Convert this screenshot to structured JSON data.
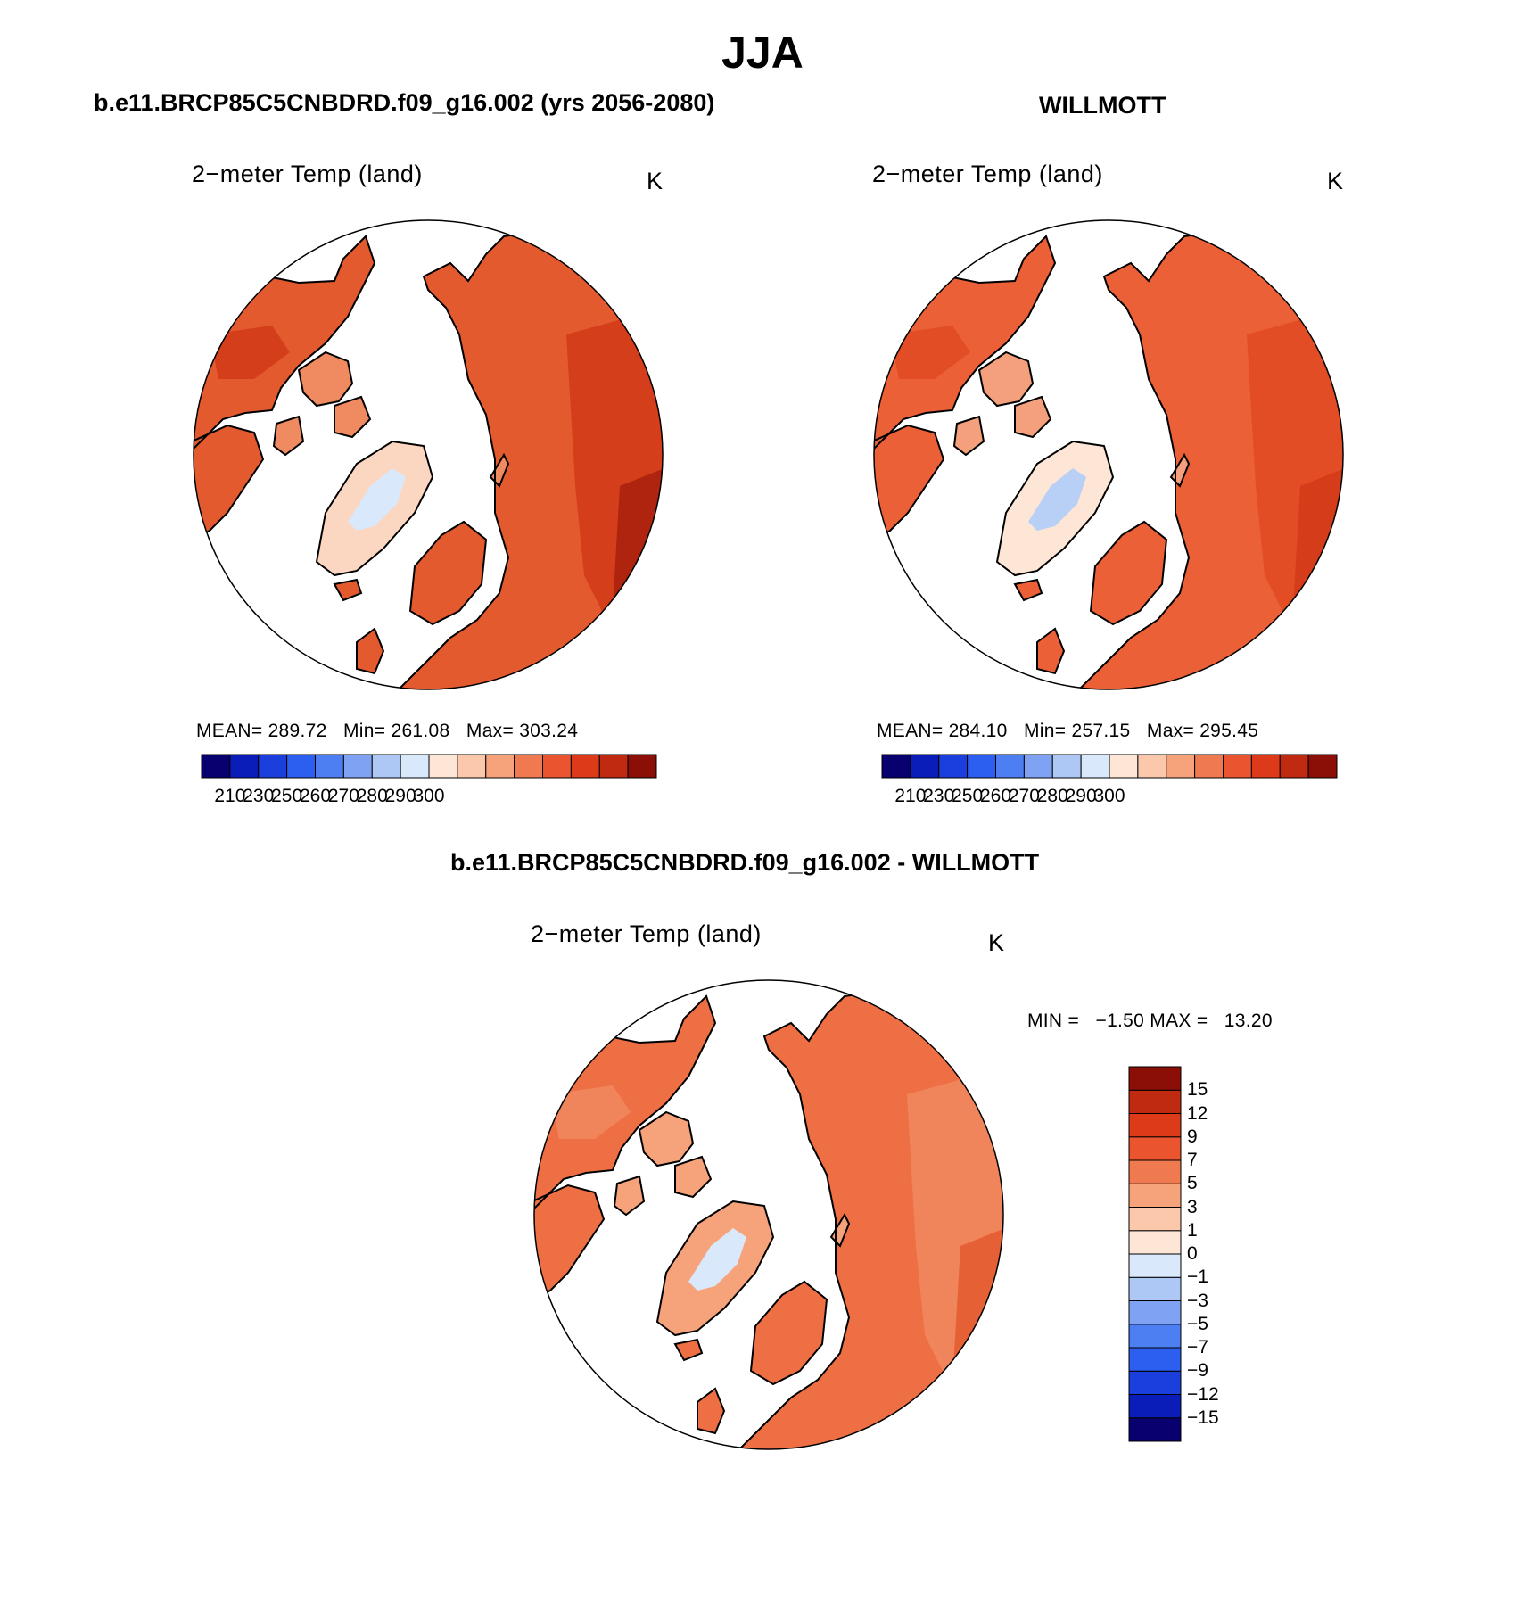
{
  "title": "JJA",
  "panels": [
    {
      "heading": "b.e11.BRCP85C5CNBDRD.f09_g16.002 (yrs 2056-2080)",
      "label": "2−meter Temp (land)",
      "units": "K",
      "stats": {
        "mean_label": "MEAN=",
        "mean": "289.72",
        "min_label": "Min=",
        "min": "261.08",
        "max_label": "Max=",
        "max": "303.24"
      }
    },
    {
      "heading": "WILLMOTT",
      "label": "2−meter Temp (land)",
      "units": "K",
      "stats": {
        "mean_label": "MEAN=",
        "mean": "284.10",
        "min_label": "Min=",
        "min": "257.15",
        "max_label": "Max=",
        "max": "295.45"
      }
    },
    {
      "heading": "b.e11.BRCP85C5CNBDRD.f09_g16.002 - WILLMOTT",
      "label": "2−meter Temp (land)",
      "units": "K",
      "stats": {
        "min_label": "MIN =",
        "min": "−1.50",
        "max_label": "MAX =",
        "max": "13.20"
      }
    }
  ],
  "abs_colorbar": {
    "colors": [
      "#08006e",
      "#0a1db8",
      "#1a3fdc",
      "#2c5ff0",
      "#4d7ef2",
      "#7fa3f2",
      "#aec8f6",
      "#d9e8fa",
      "#fde6d6",
      "#fbc8ac",
      "#f6a37c",
      "#f07a50",
      "#ea5530",
      "#dd3a19",
      "#c02a10",
      "#8b0f06"
    ],
    "ticks": [
      "210",
      "230",
      "250",
      "260",
      "270",
      "280",
      "290",
      "300"
    ]
  },
  "diff_colorbar": {
    "colors": [
      "#08006e",
      "#0a1db8",
      "#1a3fdc",
      "#2c5ff0",
      "#4d7ef2",
      "#7fa3f2",
      "#aec8f6",
      "#d9e8fa",
      "#fde6d6",
      "#fbc8ac",
      "#f6a37c",
      "#f07a50",
      "#ea5530",
      "#dd3a19",
      "#c02a10",
      "#8b0f06"
    ],
    "ticks": [
      "−15",
      "−12",
      "−9",
      "−7",
      "−5",
      "−3",
      "−1",
      "0",
      "1",
      "3",
      "5",
      "7",
      "9",
      "12",
      "15"
    ]
  },
  "map_colors": {
    "panel1": {
      "primary": "#e35a2e",
      "secondary": "#d23a18",
      "hot": "#a8200d",
      "cool": "#f08a60",
      "ice": "#fbd6c0",
      "icecore": "#d9e8fa"
    },
    "panel2": {
      "primary": "#ec6038",
      "secondary": "#e04a22",
      "hot": "#d23a18",
      "cool": "#f4a07c",
      "ice": "#fde6d6",
      "icecore": "#b8cff6"
    },
    "panel3": {
      "primary": "#ef6f44",
      "secondary": "#f08a60",
      "hot": "#e35a2e",
      "cool": "#f6a37c",
      "ice": "#f6a37c",
      "icecore": "#d9e8fa"
    }
  }
}
